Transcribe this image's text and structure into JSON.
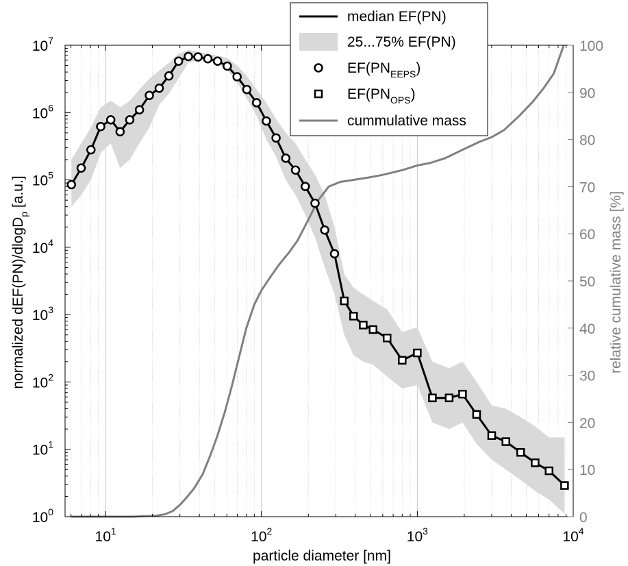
{
  "chart_data": {
    "type": "line",
    "xscale": "log",
    "yscale": "log",
    "xlim": [
      5.5,
      10000
    ],
    "ylim": [
      1,
      10000000
    ],
    "ylim_right": [
      0,
      100
    ],
    "xlabel": "particle diameter [nm]",
    "ylabel_main": "normalized dEF(PN)/dlogD",
    "ylabel_sub": "p",
    "ylabel_unit": " [a.u.]",
    "y2label": "relative cumulative mass [%]",
    "x_tick_labels": [
      {
        "base": "10",
        "exp": "1",
        "value": 10
      },
      {
        "base": "10",
        "exp": "2",
        "value": 100
      },
      {
        "base": "10",
        "exp": "3",
        "value": 1000
      },
      {
        "base": "10",
        "exp": "4",
        "value": 10000
      }
    ],
    "y_tick_labels": [
      {
        "base": "10",
        "exp": "0",
        "value": 1
      },
      {
        "base": "10",
        "exp": "1",
        "value": 10
      },
      {
        "base": "10",
        "exp": "2",
        "value": 100
      },
      {
        "base": "10",
        "exp": "3",
        "value": 1000
      },
      {
        "base": "10",
        "exp": "4",
        "value": 10000
      },
      {
        "base": "10",
        "exp": "5",
        "value": 100000
      },
      {
        "base": "10",
        "exp": "6",
        "value": 1000000
      },
      {
        "base": "10",
        "exp": "7",
        "value": 10000000
      }
    ],
    "y2_tick_labels": [
      "0",
      "10",
      "20",
      "30",
      "40",
      "50",
      "60",
      "70",
      "80",
      "90",
      "100"
    ],
    "legend": {
      "position": "top-right",
      "items": [
        {
          "label": "median EF(PN)",
          "kind": "line"
        },
        {
          "label": "25...75% EF(PN)",
          "kind": "band"
        },
        {
          "label_main": "EF(PN",
          "label_sub": "EEPS",
          "label_end": ")",
          "kind": "circle"
        },
        {
          "label_main": "EF(PN",
          "label_sub": "OPS",
          "label_end": ")",
          "kind": "square"
        },
        {
          "label": "cummulative mass",
          "kind": "gray-line"
        }
      ]
    },
    "colors": {
      "median": "#000000",
      "band": "#d9d9d9",
      "cumulative": "#808080",
      "grid": "#c8c8c8",
      "right_axis": "#808080"
    },
    "series": [
      {
        "name": "median EF(PN)",
        "x": [
          6.04,
          6.98,
          8.06,
          9.31,
          10.8,
          12.4,
          14.3,
          16.5,
          19.1,
          22.1,
          25.5,
          29.4,
          34.0,
          39.2,
          45.3,
          52.3,
          60.4,
          69.8,
          80.6,
          93.1,
          107.5,
          124.1,
          143.3,
          165.5,
          191.1,
          220.7,
          254.8,
          294.3,
          340,
          390,
          450,
          520,
          640,
          800,
          1000,
          1250,
          1600,
          1950,
          2400,
          3000,
          3700,
          4600,
          5700,
          7000,
          8800
        ],
        "y": [
          85000,
          150000,
          280000,
          620000,
          780000,
          520000,
          780000,
          1100000,
          1800000,
          2300000,
          3500000,
          5800000,
          6800000,
          6700000,
          6300000,
          5800000,
          4900000,
          3400000,
          2200000,
          1400000,
          750000,
          420000,
          210000,
          140000,
          80000,
          45000,
          18000,
          8000,
          1600,
          950,
          700,
          600,
          450,
          210,
          270,
          58,
          58,
          66,
          33,
          16,
          13,
          9,
          6.3,
          4.8,
          2.9
        ]
      },
      {
        "name": "EF(PN_EEPS)",
        "marker": "circle",
        "x": [
          6.04,
          6.98,
          8.06,
          9.31,
          10.8,
          12.4,
          14.3,
          16.5,
          19.1,
          22.1,
          25.5,
          29.4,
          34.0,
          39.2,
          45.3,
          52.3,
          60.4,
          69.8,
          80.6,
          93.1,
          107.5,
          124.1,
          143.3,
          165.5,
          191.1,
          220.7,
          254.8,
          294.3
        ],
        "y": [
          85000,
          150000,
          280000,
          620000,
          780000,
          520000,
          780000,
          1100000,
          1800000,
          2300000,
          3500000,
          5800000,
          6800000,
          6700000,
          6300000,
          5800000,
          4900000,
          3400000,
          2200000,
          1400000,
          750000,
          420000,
          210000,
          140000,
          80000,
          45000,
          18000,
          8000
        ]
      },
      {
        "name": "EF(PN_OPS)",
        "marker": "square",
        "x": [
          340,
          390,
          450,
          520,
          640,
          800,
          1000,
          1250,
          1600,
          1950,
          2400,
          3000,
          3700,
          4600,
          5700,
          7000,
          8800
        ],
        "y": [
          1600,
          950,
          700,
          600,
          450,
          210,
          270,
          58,
          58,
          66,
          33,
          16,
          13,
          9,
          6.3,
          4.8,
          2.9
        ]
      },
      {
        "name": "25...75% EF(PN)",
        "kind": "band",
        "x": [
          6.04,
          6.98,
          8.06,
          9.31,
          10.8,
          12.4,
          14.3,
          16.5,
          19.1,
          22.1,
          25.5,
          29.4,
          34.0,
          39.2,
          45.3,
          52.3,
          60.4,
          69.8,
          80.6,
          93.1,
          107.5,
          124.1,
          143.3,
          165.5,
          191.1,
          220.7,
          254.8,
          294.3,
          340,
          390,
          450,
          520,
          640,
          800,
          1000,
          1250,
          1600,
          1950,
          2400,
          3000,
          3700,
          4600,
          5700,
          7000,
          8800
        ],
        "low": [
          40000,
          60000,
          100000,
          250000,
          350000,
          150000,
          200000,
          350000,
          600000,
          1300000,
          1900000,
          3200000,
          5500000,
          6000000,
          5800000,
          5200000,
          4300000,
          2800000,
          1600000,
          900000,
          400000,
          220000,
          100000,
          60000,
          30000,
          14000,
          5000,
          2000,
          500,
          250,
          200,
          180,
          120,
          80,
          90,
          25,
          20,
          25,
          12,
          7,
          5,
          3.5,
          2.4,
          1.8,
          1.1
        ],
        "high": [
          200000,
          350000,
          600000,
          1200000,
          1500000,
          1200000,
          1500000,
          2200000,
          3200000,
          4200000,
          5500000,
          7500000,
          8500000,
          8000000,
          7500000,
          7000000,
          6500000,
          5000000,
          3500000,
          2200000,
          1400000,
          800000,
          500000,
          350000,
          200000,
          120000,
          60000,
          20000,
          4000,
          2500,
          2000,
          1600,
          1200,
          550,
          650,
          200,
          160,
          200,
          100,
          45,
          40,
          30,
          22,
          15,
          15
        ]
      },
      {
        "name": "cummulative mass",
        "axis": "right",
        "x": [
          6,
          10,
          15,
          18,
          21,
          24,
          27,
          30,
          33,
          37,
          42,
          47,
          52,
          58,
          65,
          72,
          80,
          90,
          100,
          115,
          130,
          150,
          170,
          200,
          230,
          270,
          320,
          400,
          500,
          600,
          800,
          1000,
          1200,
          1500,
          2000,
          2500,
          3000,
          3600,
          4500,
          5500,
          6500,
          7500,
          8700
        ],
        "y": [
          0,
          0,
          0,
          0.1,
          0.2,
          0.5,
          1.2,
          2.5,
          4,
          6,
          9,
          13,
          17,
          22,
          28,
          34,
          40,
          45,
          48,
          51,
          53.5,
          56,
          58.5,
          63,
          67,
          70,
          71,
          71.5,
          72,
          72.5,
          73.5,
          74.5,
          75,
          76,
          78,
          79.5,
          80.5,
          82,
          85,
          88,
          91,
          94,
          100
        ]
      }
    ]
  }
}
